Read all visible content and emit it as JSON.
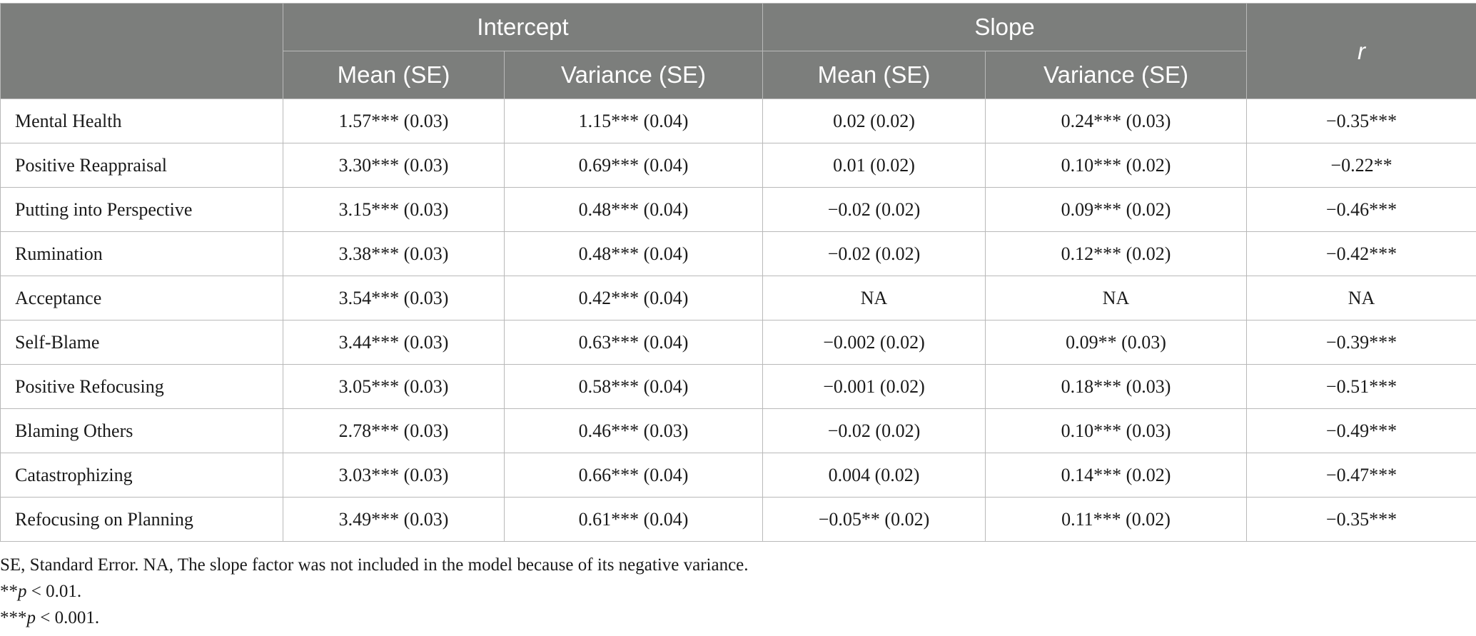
{
  "header": {
    "intercept": "Intercept",
    "slope": "Slope",
    "r": "r",
    "intercept_mean": "Mean (SE)",
    "intercept_variance": "Variance (SE)",
    "slope_mean": "Mean (SE)",
    "slope_variance": "Variance (SE)"
  },
  "rows": [
    {
      "label": "Mental Health",
      "int_mean": "1.57*** (0.03)",
      "int_var": "1.15*** (0.04)",
      "slope_mean": "0.02 (0.02)",
      "slope_var": "0.24*** (0.03)",
      "r": "−0.35***"
    },
    {
      "label": "Positive Reappraisal",
      "int_mean": "3.30*** (0.03)",
      "int_var": "0.69*** (0.04)",
      "slope_mean": "0.01 (0.02)",
      "slope_var": "0.10*** (0.02)",
      "r": "−0.22**"
    },
    {
      "label": "Putting into Perspective",
      "int_mean": "3.15*** (0.03)",
      "int_var": "0.48*** (0.04)",
      "slope_mean": "−0.02 (0.02)",
      "slope_var": "0.09*** (0.02)",
      "r": "−0.46***"
    },
    {
      "label": "Rumination",
      "int_mean": "3.38*** (0.03)",
      "int_var": "0.48*** (0.04)",
      "slope_mean": "−0.02 (0.02)",
      "slope_var": "0.12*** (0.02)",
      "r": "−0.42***"
    },
    {
      "label": "Acceptance",
      "int_mean": "3.54*** (0.03)",
      "int_var": "0.42*** (0.04)",
      "slope_mean": "NA",
      "slope_var": "NA",
      "r": "NA"
    },
    {
      "label": "Self-Blame",
      "int_mean": "3.44*** (0.03)",
      "int_var": "0.63*** (0.04)",
      "slope_mean": "−0.002 (0.02)",
      "slope_var": "0.09** (0.03)",
      "r": "−0.39***"
    },
    {
      "label": "Positive Refocusing",
      "int_mean": "3.05*** (0.03)",
      "int_var": "0.58*** (0.04)",
      "slope_mean": "−0.001 (0.02)",
      "slope_var": "0.18*** (0.03)",
      "r": "−0.51***"
    },
    {
      "label": "Blaming Others",
      "int_mean": "2.78*** (0.03)",
      "int_var": "0.46*** (0.03)",
      "slope_mean": "−0.02 (0.02)",
      "slope_var": "0.10*** (0.03)",
      "r": "−0.49***"
    },
    {
      "label": "Catastrophizing",
      "int_mean": "3.03*** (0.03)",
      "int_var": "0.66*** (0.04)",
      "slope_mean": "0.004 (0.02)",
      "slope_var": "0.14*** (0.02)",
      "r": "−0.47***"
    },
    {
      "label": "Refocusing on Planning",
      "int_mean": "3.49*** (0.03)",
      "int_var": "0.61*** (0.04)",
      "slope_mean": "−0.05** (0.02)",
      "slope_var": "0.11*** (0.02)",
      "r": "−0.35***"
    }
  ],
  "notes": {
    "abbrev": "SE, Standard Error. NA, The slope factor was not included in the model because of its negative variance.",
    "p01_stars": "**",
    "p01_p": "p",
    "p01_rest": " < 0.01.",
    "p001_stars": "***",
    "p001_p": "p",
    "p001_rest": " < 0.001."
  }
}
